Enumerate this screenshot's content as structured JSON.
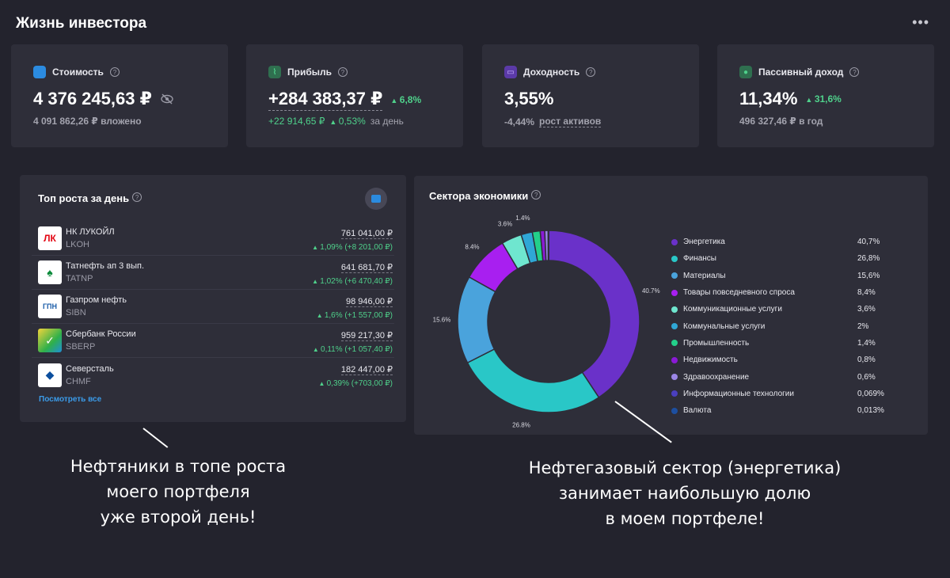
{
  "app": {
    "title": "Жизнь инвестора",
    "more": "•••"
  },
  "stats": {
    "value": {
      "label": "Стоимость",
      "amount": "4 376 245,63 ₽",
      "sub": "4 091 862,26 ₽ вложено",
      "icon": "wallet-icon",
      "color": "#2b8be0"
    },
    "profit": {
      "label": "Прибыль",
      "amount": "+284 383,37 ₽",
      "change": "6,8%",
      "sub_amount": "+22 914,65 ₽",
      "sub_pct": "0,53%",
      "sub_suffix": "за день",
      "icon": "chart-icon",
      "color": "#4fd18b"
    },
    "yield": {
      "label": "Доходность",
      "amount": "3,55%",
      "sub_value": "-4,44%",
      "sub_label": "рост активов",
      "icon": "calendar-icon",
      "color": "#9b6cf0"
    },
    "passive": {
      "label": "Пассивный доход",
      "amount": "11,34%",
      "change": "31,6%",
      "sub": "496 327,46 ₽ в год",
      "icon": "piggy-icon",
      "color": "#4fd18b"
    }
  },
  "top": {
    "title": "Топ роста за день",
    "see_all": "Посмотреть все",
    "rows": [
      {
        "name": "НК ЛУКОЙЛ",
        "ticker": "LKOH",
        "price": "761 041,00 ₽",
        "pct": "1,09%",
        "abs": "(+8 201,00 ₽)"
      },
      {
        "name": "Татнефть ап 3 вып.",
        "ticker": "TATNP",
        "price": "641 681,70 ₽",
        "pct": "1,02%",
        "abs": "(+6 470,40 ₽)"
      },
      {
        "name": "Газпром нефть",
        "ticker": "SIBN",
        "price": "98 946,00 ₽",
        "pct": "1,6%",
        "abs": "(+1 557,00 ₽)"
      },
      {
        "name": "Сбербанк России",
        "ticker": "SBERP",
        "price": "959 217,30 ₽",
        "pct": "0,11%",
        "abs": "(+1 057,40 ₽)"
      },
      {
        "name": "Северсталь",
        "ticker": "CHMF",
        "price": "182 447,00 ₽",
        "pct": "0,39%",
        "abs": "(+703,00 ₽)"
      }
    ]
  },
  "sectors": {
    "title": "Сектора экономики",
    "slice_labels": [
      "40.7%",
      "26.8%",
      "15.6%",
      "8.4%",
      "3.6%",
      "1.4%"
    ],
    "legend": [
      {
        "name": "Энергетика",
        "value": "40,7%",
        "color": "#6a31c9"
      },
      {
        "name": "Финансы",
        "value": "26,8%",
        "color": "#29c7c7"
      },
      {
        "name": "Материалы",
        "value": "15,6%",
        "color": "#4aa3dc"
      },
      {
        "name": "Товары повседневного спроса",
        "value": "8,4%",
        "color": "#a81ff0"
      },
      {
        "name": "Коммуникационные услуги",
        "value": "3,6%",
        "color": "#6fe6cf"
      },
      {
        "name": "Коммунальные услуги",
        "value": "2%",
        "color": "#2fa7d6"
      },
      {
        "name": "Промышленность",
        "value": "1,4%",
        "color": "#23d08a"
      },
      {
        "name": "Недвижимость",
        "value": "0,8%",
        "color": "#8a1ad6"
      },
      {
        "name": "Здравоохранение",
        "value": "0,6%",
        "color": "#9b86e6"
      },
      {
        "name": "Информационные технологии",
        "value": "0,069%",
        "color": "#4a3fbf"
      },
      {
        "name": "Валюта",
        "value": "0,013%",
        "color": "#1d4fa0"
      }
    ]
  },
  "annotations": {
    "left": [
      "Нефтяники в топе роста",
      "моего портфеля",
      "уже второй день!"
    ],
    "right": [
      "Нефтегазовый сектор (энергетика)",
      "занимает наибольшую долю",
      "в моем портфеле!"
    ]
  },
  "chart_data": {
    "type": "pie",
    "title": "Сектора экономики",
    "categories": [
      "Энергетика",
      "Финансы",
      "Материалы",
      "Товары повседневного спроса",
      "Коммуникационные услуги",
      "Коммунальные услуги",
      "Промышленность",
      "Недвижимость",
      "Здравоохранение",
      "Информационные технологии",
      "Валюта"
    ],
    "values": [
      40.7,
      26.8,
      15.6,
      8.4,
      3.6,
      2,
      1.4,
      0.8,
      0.6,
      0.069,
      0.013
    ]
  }
}
